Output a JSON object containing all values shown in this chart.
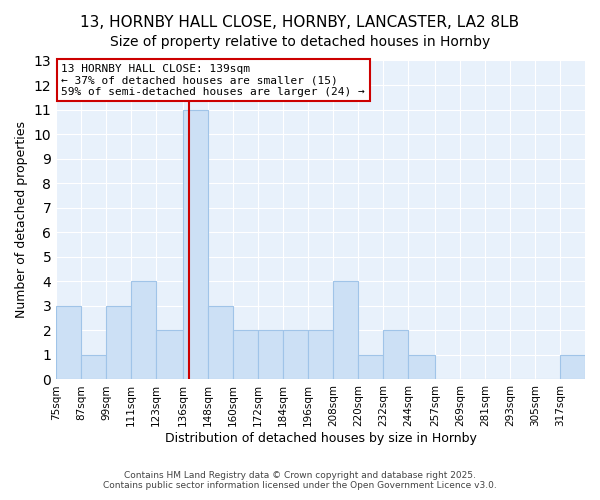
{
  "title": "13, HORNBY HALL CLOSE, HORNBY, LANCASTER, LA2 8LB",
  "subtitle": "Size of property relative to detached houses in Hornby",
  "xlabel": "Distribution of detached houses by size in Hornby",
  "ylabel": "Number of detached properties",
  "bin_labels": [
    "75sqm",
    "87sqm",
    "99sqm",
    "111sqm",
    "123sqm",
    "136sqm",
    "148sqm",
    "160sqm",
    "172sqm",
    "184sqm",
    "196sqm",
    "208sqm",
    "220sqm",
    "232sqm",
    "244sqm",
    "257sqm",
    "269sqm",
    "281sqm",
    "293sqm",
    "305sqm",
    "317sqm"
  ],
  "bin_edges": [
    75,
    87,
    99,
    111,
    123,
    136,
    148,
    160,
    172,
    184,
    196,
    208,
    220,
    232,
    244,
    257,
    269,
    281,
    293,
    305,
    317,
    329
  ],
  "bar_heights": [
    3,
    1,
    3,
    4,
    2,
    11,
    3,
    2,
    2,
    2,
    2,
    4,
    1,
    2,
    1,
    0,
    0,
    0,
    0,
    0,
    1
  ],
  "bar_color": "#cce0f5",
  "bar_edgecolor": "#a0c4e8",
  "red_line_x": 139,
  "red_line_color": "#cc0000",
  "annotation_title": "13 HORNBY HALL CLOSE: 139sqm",
  "annotation_line2": "← 37% of detached houses are smaller (15)",
  "annotation_line3": "59% of semi-detached houses are larger (24) →",
  "annotation_box_color": "#ffffff",
  "annotation_box_edgecolor": "#cc0000",
  "ylim": [
    0,
    13
  ],
  "yticks": [
    0,
    1,
    2,
    3,
    4,
    5,
    6,
    7,
    8,
    9,
    10,
    11,
    12,
    13
  ],
  "bg_color": "#ffffff",
  "plot_bg_color": "#e8f1fb",
  "footer1": "Contains HM Land Registry data © Crown copyright and database right 2025.",
  "footer2": "Contains public sector information licensed under the Open Government Licence v3.0.",
  "title_fontsize": 11,
  "subtitle_fontsize": 10,
  "grid_color": "#ffffff"
}
